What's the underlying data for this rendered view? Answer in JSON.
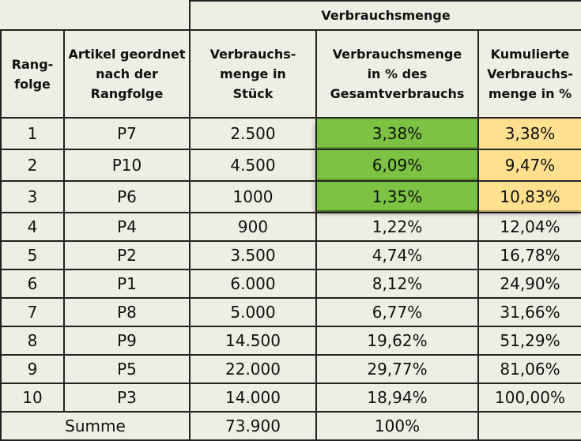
{
  "table": {
    "group_header": "Verbrauchsmenge",
    "columns": [
      "Rang-\nfolge",
      "Artikel geordnet\nnach der\nRangfolge",
      "Verbrauchs-\nmenge in\nStück",
      "Verbrauchsmenge\nin % des\nGesamtverbrauchs",
      "Kumulierte\nVerbrauchs-\nmenge in %"
    ],
    "rows": [
      {
        "rank": "1",
        "article": "P7",
        "qty": "2.500",
        "pct": "3,38%",
        "cum": "3,38%"
      },
      {
        "rank": "2",
        "article": "P10",
        "qty": "4.500",
        "pct": "6,09%",
        "cum": "9,47%"
      },
      {
        "rank": "3",
        "article": "P6",
        "qty": "1000",
        "pct": "1,35%",
        "cum": "10,83%"
      },
      {
        "rank": "4",
        "article": "P4",
        "qty": "900",
        "pct": "1,22%",
        "cum": "12,04%"
      },
      {
        "rank": "5",
        "article": "P2",
        "qty": "3.500",
        "pct": "4,74%",
        "cum": "16,78%"
      },
      {
        "rank": "6",
        "article": "P1",
        "qty": "6.000",
        "pct": "8,12%",
        "cum": "24,90%"
      },
      {
        "rank": "7",
        "article": "P8",
        "qty": "5.000",
        "pct": "6,77%",
        "cum": "31,66%"
      },
      {
        "rank": "8",
        "article": "P9",
        "qty": "14.500",
        "pct": "19,62%",
        "cum": "51,29%"
      },
      {
        "rank": "9",
        "article": "P5",
        "qty": "22.000",
        "pct": "29,77%",
        "cum": "81,06%"
      },
      {
        "rank": "10",
        "article": "P3",
        "qty": "14.000",
        "pct": "18,94%",
        "cum": "100,00%"
      }
    ],
    "sum": {
      "label": "Summe",
      "qty": "73.900",
      "pct": "100%",
      "cum": ""
    }
  },
  "colors": {
    "background": "#eeeee4",
    "highlight_pct": "#7cc243",
    "highlight_cum": "#ffe08f"
  }
}
